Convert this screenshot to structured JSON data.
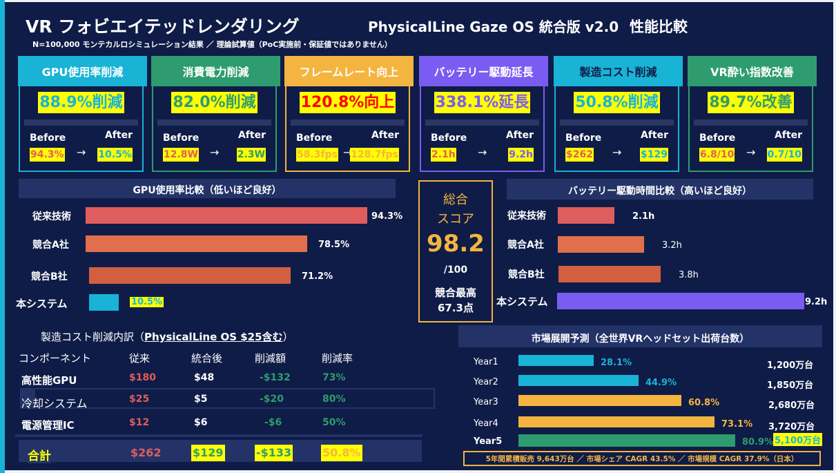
{
  "header": {
    "title": "VR フォビエイテッドレンダリング",
    "title_product": "PhysicalLine Gaze OS 統合版 v2.0",
    "title_tail": "性能比較",
    "subtitle": "N=100,000 モンテカルロシミュレーション結果 ／ 理論試算値（PoC実施前・保証値ではありません）"
  },
  "colors": {
    "background": "#0f1c47",
    "cyan": "#19b3d6",
    "green": "#2e9c6e",
    "orange": "#f4b540",
    "purple": "#7a5cf2",
    "red": "#e05d5d",
    "highlight": "#ffff00"
  },
  "kpis": [
    {
      "title": "GPU使用率削減",
      "main": "88.9%削減",
      "before_label": "Before",
      "after_label": "After",
      "arrow": "→",
      "before": "94.3%",
      "after": "10.5%",
      "color": "#19b3d6"
    },
    {
      "title": "消費電力削減",
      "main": "82.0%削減",
      "before_label": "Before",
      "after_label": "After",
      "arrow": "→",
      "before": "12.8W",
      "after": "2.3W",
      "color": "#2e9c6e"
    },
    {
      "title": "フレームレート向上",
      "main": "120.8%向上",
      "before_label": "Before",
      "after_label": "After",
      "arrow": "→",
      "before": "58.3fps",
      "after": "128.7fps",
      "color": "#f4b540"
    },
    {
      "title": "バッテリー駆動延長",
      "main": "338.1%延長",
      "before_label": "Before",
      "after_label": "After",
      "arrow": "→",
      "before": "2.1h",
      "after": "9.2h",
      "color": "#7a5cf2"
    },
    {
      "title": "製造コスト削減",
      "main": "50.8%削減",
      "before_label": "Before",
      "after_label": "After",
      "arrow": "→",
      "before": "$262",
      "after": "$129",
      "color": "#19b3d6"
    },
    {
      "title": "VR酔い指数改善",
      "main": "89.7%改善",
      "before_label": "Before",
      "after_label": "After",
      "arrow": "→",
      "before": "6.8/10",
      "after": "0.7/10",
      "color": "#2e9c6e"
    }
  ],
  "chart_data": [
    {
      "type": "bar",
      "orientation": "horizontal",
      "title": "GPU使用率比較（低いほど良好）",
      "categories": [
        "従来技術",
        "競合A社",
        "競合B社",
        "本システム"
      ],
      "values": [
        94.3,
        78.5,
        71.2,
        10.5
      ],
      "labels": [
        "94.3%",
        "78.5%",
        "71.2%",
        "10.5%"
      ],
      "colors": [
        "#e05d5d",
        "#e0704d",
        "#d2603f",
        "#19b3d6"
      ],
      "xlim": [
        0,
        100
      ]
    },
    {
      "type": "bar",
      "orientation": "horizontal",
      "title": "バッテリー駆動時間比較（高いほど良好）",
      "categories": [
        "従来技術",
        "競合A社",
        "競合B社",
        "本システム"
      ],
      "values": [
        2.1,
        3.2,
        3.8,
        9.2
      ],
      "labels": [
        "2.1h",
        "3.2h",
        "3.8h",
        "9.2h"
      ],
      "colors": [
        "#e05d5d",
        "#e0704d",
        "#d2603f",
        "#7a5cf2"
      ],
      "xlim": [
        0,
        9.2
      ]
    },
    {
      "type": "bar",
      "orientation": "horizontal",
      "title": "市場展開予測（全世界VRヘッドセット出荷台数）",
      "categories": [
        "Year1",
        "Year2",
        "Year3",
        "Year4",
        "Year5"
      ],
      "values": [
        28.1,
        44.9,
        60.8,
        73.1,
        80.9
      ],
      "labels": [
        "28.1%",
        "44.9%",
        "60.8%",
        "73.1%",
        "80.9%"
      ],
      "units": [
        "1,200万台",
        "1,850万台",
        "2,680万台",
        "3,720万台",
        "5,100万台"
      ],
      "colors": [
        "#19b3d6",
        "#19b3d6",
        "#f4b540",
        "#f4b540",
        "#2e9c6e"
      ],
      "label_colors": [
        "#19b3d6",
        "#19b3d6",
        "#f4b540",
        "#f4b540",
        "#2e9c6e"
      ],
      "xlim": [
        0,
        80.9
      ],
      "footnote": "5年間累積販売 9,643万台 ／ 市場シェア CAGR 43.5% ／ 市場規模 CAGR 37.9%（日本）"
    }
  ],
  "score": {
    "label_line1": "総合",
    "label_line2": "スコア",
    "value": "98.2",
    "max": "/100",
    "note_line1": "競合最高",
    "note_line2": "67.3点"
  },
  "cost": {
    "title": "製造コスト削減内訳（",
    "title_emph": "PhysicalLine OS $25含む",
    "title_end": "）",
    "headers": [
      "コンポーネント",
      "従来",
      "統合後",
      "削減額",
      "削減率"
    ],
    "rows": [
      {
        "name": "高性能GPU",
        "before": "$180",
        "after": "$48",
        "diff": "-$132",
        "rate": "73%"
      },
      {
        "name": "冷却システム",
        "before": "$25",
        "after": "$5",
        "diff": "-$20",
        "rate": "80%"
      },
      {
        "name": "電源管理IC",
        "before": "$12",
        "after": "$6",
        "diff": "-$6",
        "rate": "50%"
      }
    ],
    "total": {
      "name": "合計",
      "before": "$262",
      "after": "$129",
      "diff": "-$133",
      "rate": "50.8%"
    }
  }
}
